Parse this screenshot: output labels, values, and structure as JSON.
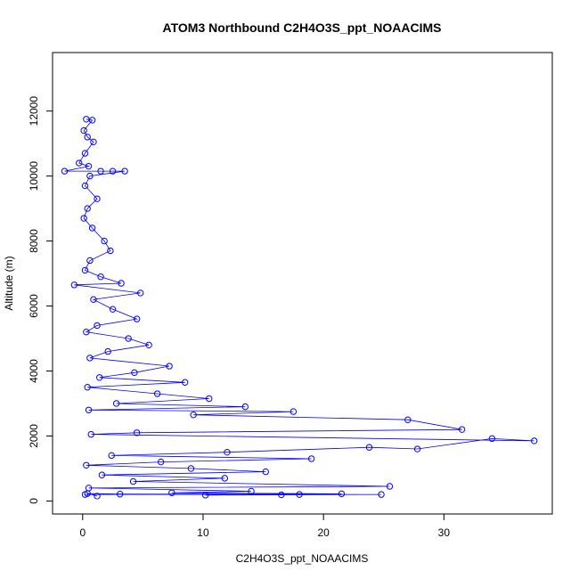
{
  "chart_data": {
    "type": "scatter",
    "title": "ATOM3 Northbound C2H4O3S_ppt_NOAACIMS",
    "xlabel": "C2H4O3S_ppt_NOAACIMS",
    "ylabel": "Altitude (m)",
    "xlim": [
      -2.5,
      39
    ],
    "ylim": [
      -400,
      13800
    ],
    "x_ticks": [
      0,
      10,
      20,
      30
    ],
    "y_ticks": [
      0,
      2000,
      4000,
      6000,
      8000,
      10000,
      12000
    ],
    "x_tick_labels": [
      "0",
      "10",
      "20",
      "30"
    ],
    "y_tick_labels": [
      "0",
      "2000",
      "4000",
      "6000",
      "8000",
      "10000",
      "12000"
    ],
    "grid": false,
    "legend": "none",
    "marker": "open-circle",
    "connected": true,
    "color": "#0000ff",
    "series": [
      {
        "values": [
          [
            0.3,
            11750
          ],
          [
            0.8,
            11720
          ],
          [
            0.1,
            11400
          ],
          [
            0.4,
            11200
          ],
          [
            0.9,
            11050
          ],
          [
            0.2,
            10700
          ],
          [
            -0.3,
            10400
          ],
          [
            0.5,
            10300
          ],
          [
            -1.5,
            10150
          ],
          [
            1.5,
            10150
          ],
          [
            2.5,
            10150
          ],
          [
            3.5,
            10150
          ],
          [
            0.6,
            10000
          ],
          [
            0.2,
            9700
          ],
          [
            1.2,
            9300
          ],
          [
            0.4,
            9000
          ],
          [
            0.1,
            8700
          ],
          [
            0.8,
            8400
          ],
          [
            1.8,
            8000
          ],
          [
            2.3,
            7700
          ],
          [
            0.6,
            7400
          ],
          [
            0.2,
            7100
          ],
          [
            1.5,
            6900
          ],
          [
            3.2,
            6700
          ],
          [
            -0.7,
            6650
          ],
          [
            4.8,
            6400
          ],
          [
            0.9,
            6200
          ],
          [
            2.5,
            5900
          ],
          [
            4.5,
            5600
          ],
          [
            1.2,
            5400
          ],
          [
            0.3,
            5200
          ],
          [
            3.8,
            5000
          ],
          [
            5.5,
            4800
          ],
          [
            2.1,
            4600
          ],
          [
            0.6,
            4400
          ],
          [
            7.2,
            4150
          ],
          [
            4.3,
            3950
          ],
          [
            1.4,
            3800
          ],
          [
            8.5,
            3650
          ],
          [
            0.4,
            3500
          ],
          [
            6.2,
            3300
          ],
          [
            10.5,
            3150
          ],
          [
            2.8,
            3000
          ],
          [
            13.5,
            2900
          ],
          [
            0.5,
            2800
          ],
          [
            17.5,
            2750
          ],
          [
            9.2,
            2650
          ],
          [
            27.0,
            2500
          ],
          [
            31.5,
            2200
          ],
          [
            4.5,
            2100
          ],
          [
            0.7,
            2050
          ],
          [
            37.5,
            1850
          ],
          [
            34.0,
            1920
          ],
          [
            27.8,
            1600
          ],
          [
            23.8,
            1650
          ],
          [
            12.0,
            1500
          ],
          [
            2.4,
            1400
          ],
          [
            19.0,
            1300
          ],
          [
            6.5,
            1200
          ],
          [
            0.3,
            1100
          ],
          [
            9.0,
            1000
          ],
          [
            15.2,
            900
          ],
          [
            1.6,
            800
          ],
          [
            11.8,
            700
          ],
          [
            4.2,
            600
          ],
          [
            25.5,
            450
          ],
          [
            0.5,
            400
          ],
          [
            14.0,
            300
          ],
          [
            7.4,
            250
          ],
          [
            21.5,
            220
          ],
          [
            0.2,
            200
          ],
          [
            18.0,
            200
          ],
          [
            10.2,
            180
          ],
          [
            16.5,
            190
          ],
          [
            24.8,
            200
          ],
          [
            3.1,
            210
          ],
          [
            0.4,
            230
          ],
          [
            1.2,
            150
          ]
        ]
      }
    ]
  }
}
